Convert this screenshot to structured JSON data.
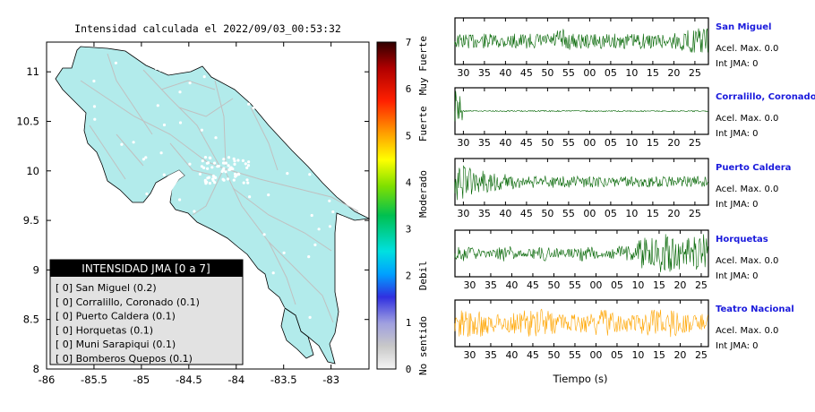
{
  "map": {
    "title": "Intensidad calculada el 2022/09/03_00:53:32",
    "land_color": "#b2ebeb",
    "x_ticks": [
      "-86",
      "-85.5",
      "-85",
      "-84.5",
      "-84",
      "-83.5",
      "-83"
    ],
    "y_ticks": [
      "8",
      "8.5",
      "9",
      "9.5",
      "10",
      "10.5",
      "11"
    ],
    "xlim": [
      -86,
      -82.6
    ],
    "ylim": [
      8,
      11.3
    ]
  },
  "colorbar": {
    "ticks": [
      "0",
      "1",
      "2",
      "3",
      "4",
      "5",
      "6",
      "7"
    ],
    "levels": [
      "No sentido",
      "Debil",
      "Moderado",
      "Fuerte",
      "Muy Fuerte"
    ]
  },
  "legend": {
    "title": "INTENSIDAD JMA [0 a 7]",
    "items": [
      "[ 0]  San Miguel (0.2)",
      "[ 0]  Corralillo, Coronado (0.1)",
      "[ 0]  Puerto Caldera (0.1)",
      "[ 0]  Horquetas (0.1)",
      "[ 0]  Muni Sarapiqui (0.1)",
      "[ 0]  Bomberos Quepos (0.1)"
    ]
  },
  "chart_data": {
    "type": "line",
    "xlabel": "Tiempo (s)",
    "series": [
      {
        "name": "San Miguel",
        "accel": "Acel. Max. 0.0",
        "jma": "Int JMA: 0",
        "color": "#006400",
        "ticks": [
          "30",
          "35",
          "40",
          "45",
          "50",
          "55",
          "00",
          "05",
          "10",
          "15",
          "20",
          "25"
        ],
        "tick_start": 30
      },
      {
        "name": "Corralillo, Coronado",
        "accel": "Acel. Max. 0.0",
        "jma": "Int JMA: 0",
        "color": "#006400",
        "ticks": [
          "30",
          "35",
          "40",
          "45",
          "50",
          "55",
          "00",
          "05",
          "10",
          "15",
          "20",
          "25"
        ],
        "tick_start": 30
      },
      {
        "name": "Puerto Caldera",
        "accel": "Acel. Max. 0.0",
        "jma": "Int JMA: 0",
        "color": "#006400",
        "ticks": [
          "30",
          "35",
          "40",
          "45",
          "50",
          "55",
          "00",
          "05",
          "10",
          "15",
          "20",
          "25"
        ],
        "tick_start": 30
      },
      {
        "name": "Horquetas",
        "accel": "Acel. Max. 0.0",
        "jma": "Int JMA: 0",
        "color": "#006400",
        "ticks": [
          "30",
          "35",
          "40",
          "45",
          "50",
          "55",
          "00",
          "05",
          "10",
          "15",
          "20",
          "25"
        ],
        "tick_start": 31.5
      },
      {
        "name": "Teatro Nacional",
        "accel": "Acel. Max. 0.0",
        "jma": "Int JMA: 0",
        "color": "#ffa500",
        "ticks": [
          "30",
          "35",
          "40",
          "45",
          "50",
          "55",
          "00",
          "05",
          "10",
          "15",
          "20",
          "25"
        ],
        "tick_start": 31.5
      }
    ]
  }
}
